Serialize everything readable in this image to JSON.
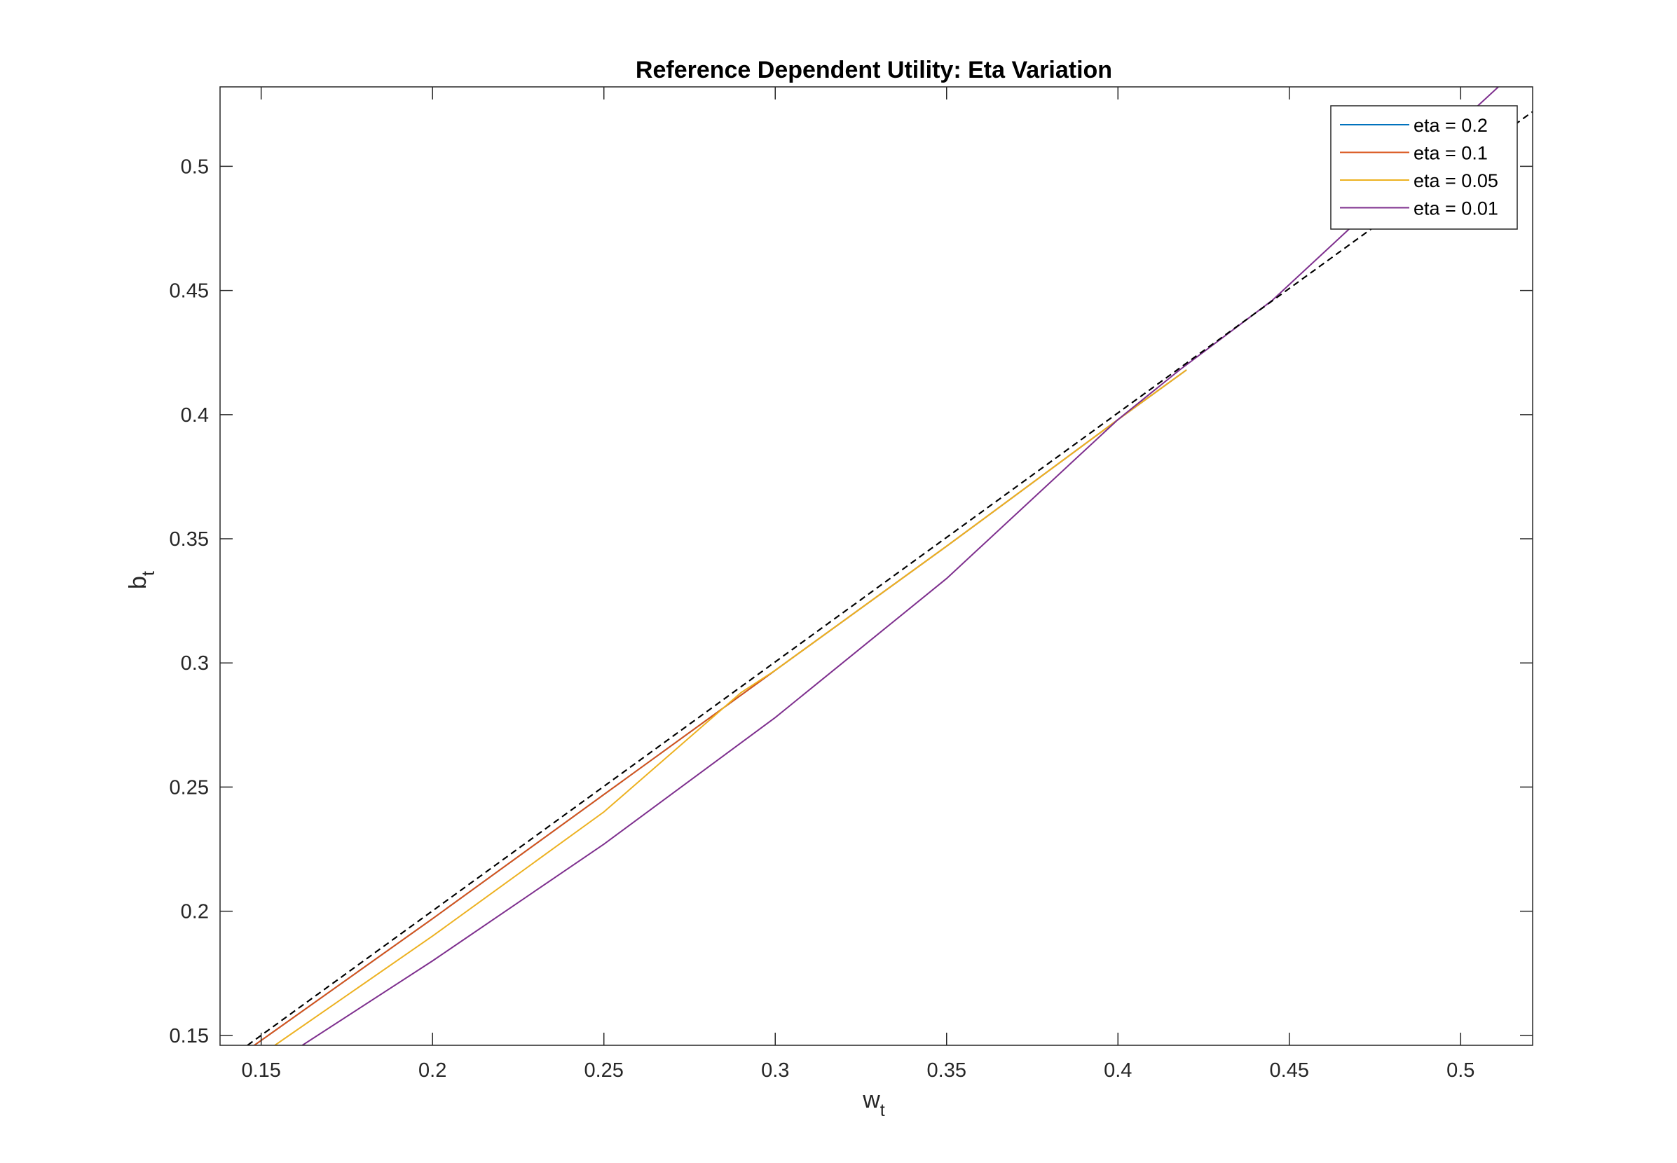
{
  "chart_data": {
    "type": "line",
    "title": "Reference Dependent Utility: Eta Variation",
    "xlabel": "w",
    "xlabel_sub": "t",
    "ylabel": "b",
    "ylabel_sub": "t",
    "xlim": [
      0.138,
      0.521
    ],
    "ylim": [
      0.146,
      0.532
    ],
    "xticks": [
      0.15,
      0.2,
      0.25,
      0.3,
      0.35,
      0.4,
      0.45,
      0.5
    ],
    "xtick_labels": [
      "0.15",
      "0.2",
      "0.25",
      "0.3",
      "0.35",
      "0.4",
      "0.45",
      "0.5"
    ],
    "yticks": [
      0.15,
      0.2,
      0.25,
      0.3,
      0.35,
      0.4,
      0.45,
      0.5
    ],
    "ytick_labels": [
      "0.15",
      "0.2",
      "0.25",
      "0.3",
      "0.35",
      "0.4",
      "0.45",
      "0.5"
    ],
    "grid": false,
    "legend_position": "top-right",
    "series": [
      {
        "name": "eta = 0.2",
        "color": "#0072BD",
        "x": [
          0.148,
          0.2,
          0.25,
          0.3,
          0.35,
          0.4,
          0.42
        ],
        "y": [
          0.146,
          0.197,
          0.247,
          0.297,
          0.347,
          0.398,
          0.418
        ]
      },
      {
        "name": "eta = 0.1",
        "color": "#D95319",
        "x": [
          0.148,
          0.2,
          0.25,
          0.3,
          0.35,
          0.4,
          0.42
        ],
        "y": [
          0.146,
          0.197,
          0.247,
          0.297,
          0.347,
          0.398,
          0.418
        ]
      },
      {
        "name": "eta = 0.05",
        "color": "#EDB120",
        "x": [
          0.154,
          0.2,
          0.25,
          0.29,
          0.3,
          0.35,
          0.4,
          0.42
        ],
        "y": [
          0.146,
          0.19,
          0.24,
          0.288,
          0.297,
          0.347,
          0.398,
          0.418
        ]
      },
      {
        "name": "eta = 0.01",
        "color": "#7E2F8E",
        "x": [
          0.162,
          0.2,
          0.25,
          0.3,
          0.35,
          0.4,
          0.418,
          0.445,
          0.47,
          0.5,
          0.511
        ],
        "y": [
          0.146,
          0.18,
          0.227,
          0.278,
          0.334,
          0.398,
          0.418,
          0.446,
          0.478,
          0.518,
          0.532
        ]
      }
    ],
    "reference_line": {
      "style": "dashed",
      "color": "#000000",
      "x": [
        0.146,
        0.521
      ],
      "y": [
        0.146,
        0.522
      ]
    }
  }
}
